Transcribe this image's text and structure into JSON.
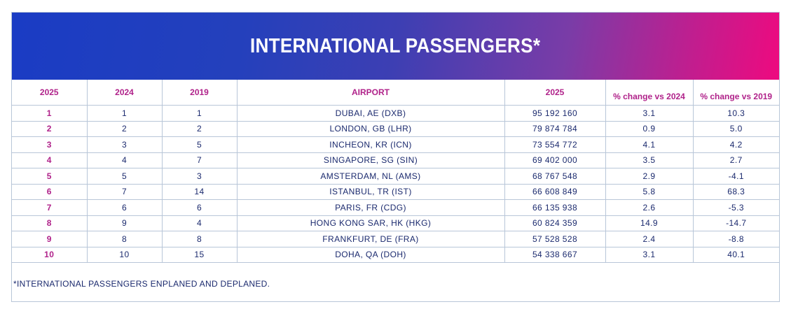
{
  "title": "INTERNATIONAL PASSENGERS*",
  "columns": {
    "rank_2025": "2025",
    "rank_2024": "2024",
    "rank_2019": "2019",
    "airport": "AIRPORT",
    "passengers_2025": "2025",
    "change_2024": "% change vs 2024",
    "change_2019": "% change vs 2019"
  },
  "rows": [
    {
      "r2025": "1",
      "r2024": "1",
      "r2019": "1",
      "airport": "DUBAI, AE (DXB)",
      "passengers": "95 192 160",
      "chg2024": "3.1",
      "chg2019": "10.3"
    },
    {
      "r2025": "2",
      "r2024": "2",
      "r2019": "2",
      "airport": "LONDON, GB (LHR)",
      "passengers": "79 874 784",
      "chg2024": "0.9",
      "chg2019": "5.0"
    },
    {
      "r2025": "3",
      "r2024": "3",
      "r2019": "5",
      "airport": "INCHEON, KR (ICN)",
      "passengers": "73 554 772",
      "chg2024": "4.1",
      "chg2019": "4.2"
    },
    {
      "r2025": "4",
      "r2024": "4",
      "r2019": "7",
      "airport": "SINGAPORE, SG (SIN)",
      "passengers": "69 402 000",
      "chg2024": "3.5",
      "chg2019": "2.7"
    },
    {
      "r2025": "5",
      "r2024": "5",
      "r2019": "3",
      "airport": "AMSTERDAM, NL (AMS)",
      "passengers": "68 767 548",
      "chg2024": "2.9",
      "chg2019": "-4.1"
    },
    {
      "r2025": "6",
      "r2024": "7",
      "r2019": "14",
      "airport": "ISTANBUL, TR (IST)",
      "passengers": "66 608 849",
      "chg2024": "5.8",
      "chg2019": "68.3"
    },
    {
      "r2025": "7",
      "r2024": "6",
      "r2019": "6",
      "airport": "PARIS, FR (CDG)",
      "passengers": "66 135 938",
      "chg2024": "2.6",
      "chg2019": "-5.3"
    },
    {
      "r2025": "8",
      "r2024": "9",
      "r2019": "4",
      "airport": "HONG KONG SAR, HK (HKG)",
      "passengers": "60 824 359",
      "chg2024": "14.9",
      "chg2019": "-14.7"
    },
    {
      "r2025": "9",
      "r2024": "8",
      "r2019": "8",
      "airport": "FRANKFURT, DE (FRA)",
      "passengers": "57 528 528",
      "chg2024": "2.4",
      "chg2019": "-8.8"
    },
    {
      "r2025": "10",
      "r2024": "10",
      "r2019": "15",
      "airport": "DOHA, QA (DOH)",
      "passengers": "54 338 667",
      "chg2024": "3.1",
      "chg2019": "40.1"
    }
  ],
  "footnote": "*INTERNATIONAL PASSENGERS ENPLANED AND DEPLANED."
}
